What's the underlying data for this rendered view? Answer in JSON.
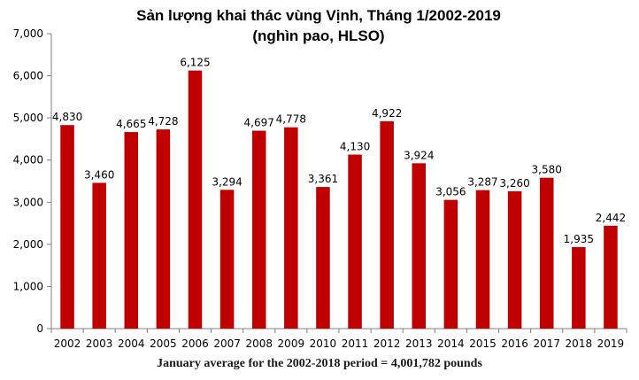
{
  "title": {
    "line1": "Sản lượng khai thác vùng Vịnh, Tháng 1/2002-2019",
    "line2": "(nghìn pao, HLSO)"
  },
  "footnote": "January average for the 2002-2018 period = 4,001,782 pounds",
  "colors": {
    "bar": "#c00000",
    "axis": "#808080"
  },
  "chart_data": {
    "type": "bar",
    "title": "Sản lượng khai thác vùng Vịnh, Tháng 1/2002-2019",
    "subtitle": "(nghìn pao, HLSO)",
    "categories": [
      "2002",
      "2003",
      "2004",
      "2005",
      "2006",
      "2007",
      "2008",
      "2009",
      "2010",
      "2011",
      "2012",
      "2013",
      "2014",
      "2015",
      "2016",
      "2017",
      "2018",
      "2019"
    ],
    "values": [
      4830,
      3460,
      4665,
      4728,
      6125,
      3294,
      4697,
      4778,
      3361,
      4130,
      4922,
      3924,
      3056,
      3287,
      3260,
      3580,
      1935,
      2442
    ],
    "value_labels": [
      "4,830",
      "3,460",
      "4,665",
      "4,728",
      "6,125",
      "3,294",
      "4,697",
      "4,778",
      "3,361",
      "4,130",
      "4,922",
      "3,924",
      "3,056",
      "3,287",
      "3,260",
      "3,580",
      "1,935",
      "2,442"
    ],
    "ylim": [
      0,
      7000
    ],
    "yticks": [
      0,
      1000,
      2000,
      3000,
      4000,
      5000,
      6000,
      7000
    ],
    "ytick_labels": [
      "0",
      "1,000",
      "2,000",
      "3,000",
      "4,000",
      "5,000",
      "6,000",
      "7,000"
    ],
    "xlabel": "",
    "ylabel": "",
    "grid": false,
    "legend": "none"
  }
}
